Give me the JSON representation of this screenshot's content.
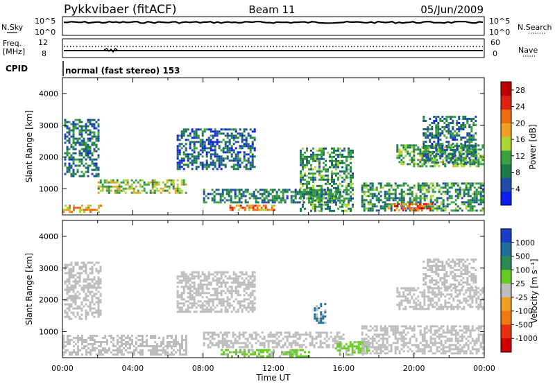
{
  "header": {
    "station": "Pykkvibaer (fitACF)",
    "beam": "Beam 11",
    "date": "05/Jun/2009"
  },
  "noise_panel": {
    "left_label": "N.Sky",
    "right_label": "N.Search",
    "left_ticks": [
      "10^5",
      "10^0"
    ],
    "right_ticks": [
      "10^5",
      "10^0"
    ]
  },
  "freq_panel": {
    "left_label_line1": "Freq.",
    "left_label_line2": "[MHz]",
    "right_label": "Nave",
    "left_ticks": [
      "12",
      "8"
    ],
    "right_ticks": [
      "60",
      "0"
    ]
  },
  "cpid": {
    "label": "CPID",
    "value": "normal (fast stereo) 153"
  },
  "colors": {
    "power_scale": [
      "#0a1cf0",
      "#1e4ca8",
      "#1a7a4a",
      "#3aa040",
      "#a8d830",
      "#f0a020",
      "#f06a10",
      "#e02010",
      "#c00000"
    ],
    "velocity_scale": [
      "#1a3cc8",
      "#1f6e9a",
      "#2a8a50",
      "#66cc22",
      "#bdbdbd",
      "#f0a020",
      "#f07a10",
      "#e83010",
      "#d00000"
    ],
    "ground_scatter": "#bcbcbc"
  },
  "chart_data": [
    {
      "type": "heatmap",
      "title": "",
      "ylabel": "Slant Range [km]",
      "xlabel": "",
      "ylim": [
        180,
        4500
      ],
      "xlim": [
        "00:00",
        "24:00"
      ],
      "yticks": [
        "1000",
        "2000",
        "3000",
        "4000"
      ],
      "xticks": [
        "00:00",
        "04:00",
        "08:00",
        "12:00",
        "16:00",
        "20:00",
        "00:00"
      ],
      "colorbar": {
        "label": "Power [dB]",
        "ticks": [
          "4",
          "8",
          "12",
          "16",
          "20",
          "24",
          "28"
        ],
        "range": [
          0,
          30
        ]
      },
      "regions": [
        {
          "t0": 0.0,
          "t1": 2.2,
          "r0": 250,
          "r1": 500,
          "value": 18
        },
        {
          "t0": 0.1,
          "t1": 2.0,
          "r0": 1400,
          "r1": 3200,
          "value": 8
        },
        {
          "t0": 2.0,
          "t1": 7.0,
          "r0": 900,
          "r1": 1300,
          "value": 14
        },
        {
          "t0": 6.5,
          "t1": 11.0,
          "r0": 1600,
          "r1": 2900,
          "value": 6
        },
        {
          "t0": 8.0,
          "t1": 16.0,
          "r0": 600,
          "r1": 1000,
          "value": 8
        },
        {
          "t0": 9.5,
          "t1": 12.0,
          "r0": 350,
          "r1": 500,
          "value": 20
        },
        {
          "t0": 13.5,
          "t1": 16.5,
          "r0": 300,
          "r1": 2300,
          "value": 10
        },
        {
          "t0": 17.0,
          "t1": 23.9,
          "r0": 300,
          "r1": 1200,
          "value": 10
        },
        {
          "t0": 18.5,
          "t1": 21.0,
          "r0": 300,
          "r1": 550,
          "value": 22
        },
        {
          "t0": 19.0,
          "t1": 23.9,
          "r0": 1700,
          "r1": 2400,
          "value": 12
        },
        {
          "t0": 20.5,
          "t1": 23.5,
          "r0": 1800,
          "r1": 3300,
          "value": 8
        }
      ]
    },
    {
      "type": "heatmap",
      "title": "",
      "ylabel": "Slant Range [km]",
      "xlabel": "Time UT",
      "ylim": [
        180,
        4500
      ],
      "xlim": [
        "00:00",
        "24:00"
      ],
      "yticks": [
        "1000",
        "2000",
        "3000",
        "4000"
      ],
      "xticks": [
        "00:00",
        "04:00",
        "08:00",
        "12:00",
        "16:00",
        "20:00",
        "00:00"
      ],
      "colorbar": {
        "label": "Velocity [m s⁻¹]",
        "ticks": [
          "1000",
          "500",
          "100",
          "25",
          "-25",
          "-100",
          "-500",
          "-1000"
        ]
      },
      "regions": [
        {
          "t0": 0.1,
          "t1": 2.2,
          "r0": 1400,
          "r1": 3200,
          "value": "ground"
        },
        {
          "t0": 0.0,
          "t1": 7.0,
          "r0": 250,
          "r1": 900,
          "value": "ground"
        },
        {
          "t0": 6.5,
          "t1": 11.0,
          "r0": 1600,
          "r1": 2900,
          "value": "ground"
        },
        {
          "t0": 8.0,
          "t1": 16.0,
          "r0": 500,
          "r1": 1000,
          "value": "ground"
        },
        {
          "t0": 9.0,
          "t1": 14.0,
          "r0": 250,
          "r1": 450,
          "value": 60
        },
        {
          "t0": 14.3,
          "t1": 15.0,
          "r0": 1300,
          "r1": 1900,
          "value": 300
        },
        {
          "t0": 15.5,
          "t1": 17.5,
          "r0": 250,
          "r1": 700,
          "value": 60
        },
        {
          "t0": 17.0,
          "t1": 23.9,
          "r0": 300,
          "r1": 1200,
          "value": "ground"
        },
        {
          "t0": 19.0,
          "t1": 23.9,
          "r0": 1700,
          "r1": 2400,
          "value": "ground"
        },
        {
          "t0": 20.5,
          "t1": 23.5,
          "r0": 2400,
          "r1": 3300,
          "value": "ground"
        }
      ]
    }
  ]
}
